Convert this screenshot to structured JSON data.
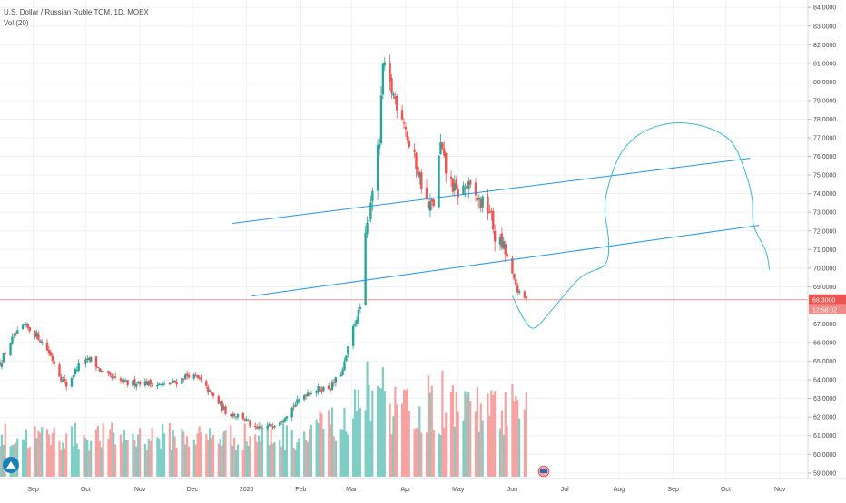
{
  "legend": {
    "symbol_line": "U.S. Dollar / Russian Ruble TOM, 1D, MOEX",
    "volume_line": "Vol (20)"
  },
  "price_axis": {
    "ticks": [
      "84.0000",
      "83.0000",
      "82.0000",
      "81.0000",
      "80.0000",
      "79.0000",
      "78.0000",
      "77.0000",
      "76.0000",
      "75.0000",
      "74.0000",
      "73.0000",
      "72.0000",
      "71.0000",
      "70.0000",
      "69.0000",
      "67.0000",
      "66.0000",
      "65.0000",
      "64.0000",
      "63.0000",
      "62.0000",
      "61.0000",
      "60.0000",
      "59.0000"
    ],
    "last_price_label": "68.3000",
    "countdown_label": "12:58:02"
  },
  "time_axis": {
    "ticks": [
      "Sep",
      "Oct",
      "Nov",
      "Dec",
      "2020",
      "Feb",
      "Mar",
      "Apr",
      "May",
      "Jun",
      "Jul",
      "Aug",
      "Sep",
      "Oct",
      "Nov"
    ]
  },
  "colors": {
    "up": "#26a69a",
    "down": "#ef5350",
    "vol_up": "#7fcdc4",
    "vol_down": "#f5a3a2",
    "drawing": "#2196f3",
    "freehand": "#3bb9d6",
    "price_line": "#ef5350",
    "grid": "#eef1f5"
  },
  "icons": {
    "logo": "tradingview-logo-icon",
    "event": "flag-event-icon"
  },
  "chart_data": {
    "type": "candlestick",
    "title": "U.S. Dollar / Russian Ruble TOM, 1D, MOEX",
    "ylim": [
      58.7,
      84.4
    ],
    "xlim": [
      "2019-08-13",
      "2020-11-17"
    ],
    "last_price": 68.3,
    "grid": true,
    "x_ticks": [
      {
        "label": "Sep",
        "date": "2019-09-01"
      },
      {
        "label": "Oct",
        "date": "2019-10-01"
      },
      {
        "label": "Nov",
        "date": "2019-11-01"
      },
      {
        "label": "Dec",
        "date": "2019-12-01"
      },
      {
        "label": "2020",
        "date": "2020-01-01"
      },
      {
        "label": "Feb",
        "date": "2020-02-01"
      },
      {
        "label": "Mar",
        "date": "2020-03-01"
      },
      {
        "label": "Apr",
        "date": "2020-04-01"
      },
      {
        "label": "May",
        "date": "2020-05-01"
      },
      {
        "label": "Jun",
        "date": "2020-06-01"
      },
      {
        "label": "Jul",
        "date": "2020-07-01"
      },
      {
        "label": "Aug",
        "date": "2020-08-01"
      },
      {
        "label": "Sep",
        "date": "2020-09-01"
      },
      {
        "label": "Oct",
        "date": "2020-10-01"
      },
      {
        "label": "Nov",
        "date": "2020-11-01"
      }
    ],
    "close_path": [
      [
        "2019-08-13",
        64.9
      ],
      [
        "2019-08-20",
        66.2
      ],
      [
        "2019-08-27",
        66.9
      ],
      [
        "2019-09-03",
        66.4
      ],
      [
        "2019-09-10",
        65.5
      ],
      [
        "2019-09-17",
        64.1
      ],
      [
        "2019-09-20",
        63.7
      ],
      [
        "2019-09-27",
        64.8
      ],
      [
        "2019-10-04",
        65.1
      ],
      [
        "2019-10-11",
        64.3
      ],
      [
        "2019-10-18",
        64.0
      ],
      [
        "2019-10-25",
        63.8
      ],
      [
        "2019-11-01",
        63.9
      ],
      [
        "2019-11-08",
        63.8
      ],
      [
        "2019-11-15",
        63.7
      ],
      [
        "2019-11-22",
        63.9
      ],
      [
        "2019-11-29",
        64.3
      ],
      [
        "2019-12-05",
        64.0
      ],
      [
        "2019-12-12",
        63.2
      ],
      [
        "2019-12-20",
        62.3
      ],
      [
        "2019-12-30",
        62.0
      ],
      [
        "2020-01-06",
        61.3
      ],
      [
        "2020-01-14",
        61.5
      ],
      [
        "2020-01-21",
        61.9
      ],
      [
        "2020-01-28",
        62.6
      ],
      [
        "2020-02-04",
        63.3
      ],
      [
        "2020-02-11",
        63.5
      ],
      [
        "2020-02-18",
        63.6
      ],
      [
        "2020-02-25",
        64.5
      ],
      [
        "2020-03-02",
        66.8
      ],
      [
        "2020-03-06",
        67.9
      ],
      [
        "2020-03-09",
        71.5
      ],
      [
        "2020-03-13",
        74.4
      ],
      [
        "2020-03-17",
        76.8
      ],
      [
        "2020-03-19",
        80.9
      ],
      [
        "2020-03-24",
        79.5
      ],
      [
        "2020-03-31",
        78.0
      ],
      [
        "2020-04-03",
        76.5
      ],
      [
        "2020-04-07",
        75.6
      ],
      [
        "2020-04-14",
        73.2
      ],
      [
        "2020-04-17",
        73.5
      ],
      [
        "2020-04-21",
        76.6
      ],
      [
        "2020-04-24",
        75.2
      ],
      [
        "2020-04-30",
        74.0
      ],
      [
        "2020-05-06",
        74.4
      ],
      [
        "2020-05-13",
        73.6
      ],
      [
        "2020-05-19",
        73.1
      ],
      [
        "2020-05-22",
        71.7
      ],
      [
        "2020-05-27",
        71.1
      ],
      [
        "2020-05-29",
        70.5
      ],
      [
        "2020-06-02",
        69.3
      ],
      [
        "2020-06-05",
        68.6
      ],
      [
        "2020-06-09",
        68.3
      ]
    ],
    "volume_scale": {
      "max_volume": 100,
      "panel_bottom_price": 58.8,
      "panel_top_price": 65.0
    },
    "volume_spikes": [
      {
        "date": "2020-03-10",
        "volume": 100
      },
      {
        "date": "2020-03-19",
        "volume": 95
      },
      {
        "date": "2020-04-14",
        "volume": 88
      },
      {
        "date": "2020-04-22",
        "volume": 92
      },
      {
        "date": "2020-05-18",
        "volume": 72
      }
    ],
    "annotations": [
      {
        "type": "trend_line",
        "from": [
          "2019-12-24",
          72.4
        ],
        "to": [
          "2020-10-15",
          75.9
        ]
      },
      {
        "type": "trend_line",
        "from": [
          "2020-01-04",
          68.5
        ],
        "to": [
          "2020-10-20",
          72.3
        ]
      },
      {
        "type": "horizontal_line",
        "price": 68.3
      },
      {
        "type": "freehand",
        "points": [
          [
            "2020-06-01",
            68.5
          ],
          [
            "2020-06-08",
            67.2
          ],
          [
            "2020-06-14",
            66.8
          ],
          [
            "2020-06-24",
            67.8
          ],
          [
            "2020-07-10",
            69.5
          ],
          [
            "2020-07-24",
            70.2
          ],
          [
            "2020-07-26",
            71.5
          ],
          [
            "2020-07-24",
            73.5
          ],
          [
            "2020-07-31",
            75.8
          ],
          [
            "2020-08-10",
            77.0
          ],
          [
            "2020-08-22",
            77.6
          ],
          [
            "2020-09-06",
            77.8
          ],
          [
            "2020-09-22",
            77.5
          ],
          [
            "2020-10-04",
            76.8
          ],
          [
            "2020-10-11",
            75.5
          ],
          [
            "2020-10-16",
            73.8
          ],
          [
            "2020-10-17",
            72.3
          ],
          [
            "2020-10-24",
            70.9
          ],
          [
            "2020-10-26",
            69.9
          ]
        ]
      }
    ]
  }
}
